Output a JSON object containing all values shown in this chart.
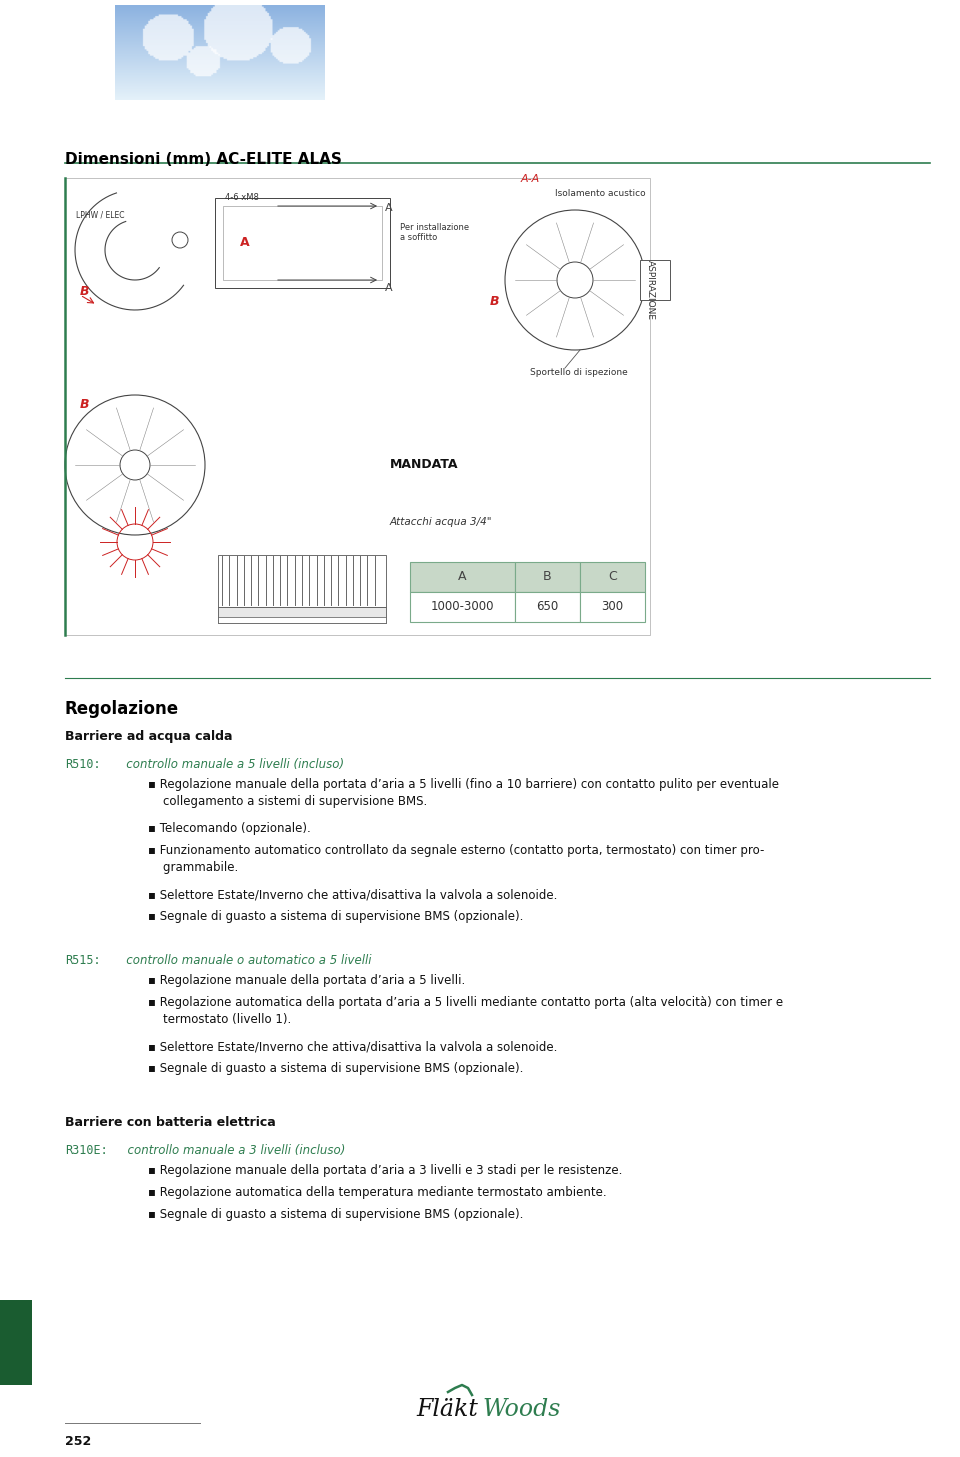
{
  "bg_color": "#ffffff",
  "title_section": "Dimensioni (mm) AC-ELITE ALAS",
  "title_color": "#000000",
  "title_fontsize": 11,
  "green_line_color": "#2e7d4f",
  "table_header_bg": "#c8d8c8",
  "table_border_color": "#7aaa8a",
  "table_headers": [
    "A",
    "B",
    "C"
  ],
  "table_values": [
    "1000-3000",
    "650",
    "300"
  ],
  "section_heading": "Regolazione",
  "section_heading_color": "#000000",
  "section_heading_fontsize": 12,
  "subsection1": "Barriere ad acqua calda",
  "subsection1_fontsize": 9,
  "green_text_color": "#2e7d4f",
  "r510_label": "R510:",
  "r510_desc": "   controllo manuale a 5 livelli (incluso)",
  "r510_bullets": [
    "▪ Regolazione manuale della portata d’aria a 5 livelli (fino a 10 barriere) con contatto pulito per eventuale\n    collegamento a sistemi di supervisione BMS.",
    "▪ Telecomando (opzionale).",
    "▪ Funzionamento automatico controllato da segnale esterno (contatto porta, termostato) con timer pro-\n    grammabile.",
    "▪ Selettore Estate/Inverno che attiva/disattiva la valvola a solenoide.",
    "▪ Segnale di guasto a sistema di supervisione BMS (opzionale)."
  ],
  "r515_label": "R515:",
  "r515_desc": "   controllo manuale o automatico a 5 livelli",
  "r515_bullets": [
    "▪ Regolazione manuale della portata d’aria a 5 livelli.",
    "▪ Regolazione automatica della portata d’aria a 5 livelli mediante contatto porta (alta velocità) con timer e\n    termostato (livello 1).",
    "▪ Selettore Estate/Inverno che attiva/disattiva la valvola a solenoide.",
    "▪ Segnale di guasto a sistema di supervisione BMS (opzionale)."
  ],
  "subsection2": "Barriere con batteria elettrica",
  "r310e_label": "R310E:",
  "r310e_desc": "  controllo manuale a 3 livelli (incluso)",
  "r310e_bullets": [
    "▪ Regolazione manuale della portata d’aria a 3 livelli e 3 stadi per le resistenze.",
    "▪ Regolazione automatica della temperatura mediante termostato ambiente.",
    "▪ Segnale di guasto a sistema di supervisione BMS (opzionale)."
  ],
  "page_number": "252",
  "body_fontsize": 8.5,
  "label_fontsize": 8.5,
  "dark_green_rect_color": "#1a5c30"
}
